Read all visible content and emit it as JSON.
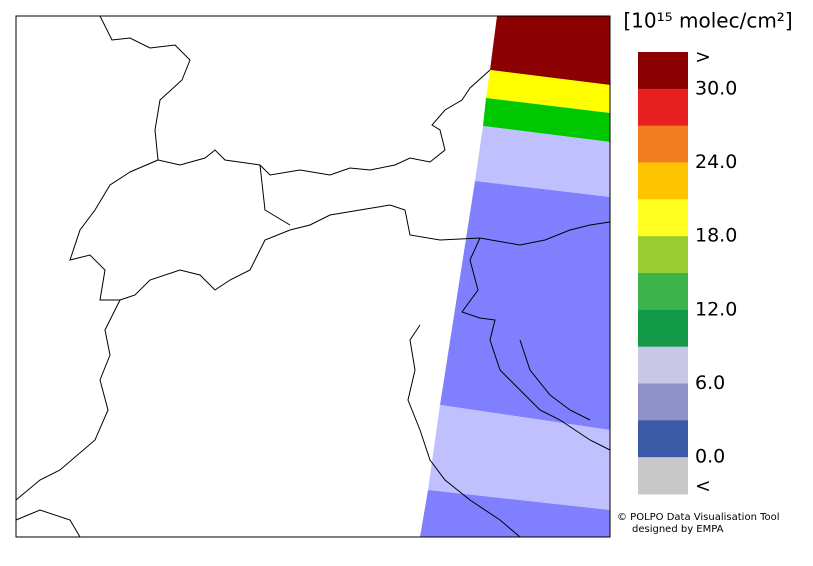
{
  "legend": {
    "unit": "[10¹⁵ molec/cm²]",
    "labels": [
      ">",
      "30.0",
      "24.0",
      "18.0",
      "12.0",
      "6.0",
      "0.0",
      "<"
    ],
    "colors": [
      "#8b0000",
      "#e82020",
      "#f07d20",
      "#ffc400",
      "#ffff20",
      "#9acd32",
      "#3cb44b",
      "#129a48",
      "#c8c8e6",
      "#9090c8",
      "#3a5aa8",
      "#c8c8c8"
    ]
  },
  "credit": {
    "line1": "© POLPO Data Visualisation Tool",
    "line2": "designed by EMPA"
  }
}
